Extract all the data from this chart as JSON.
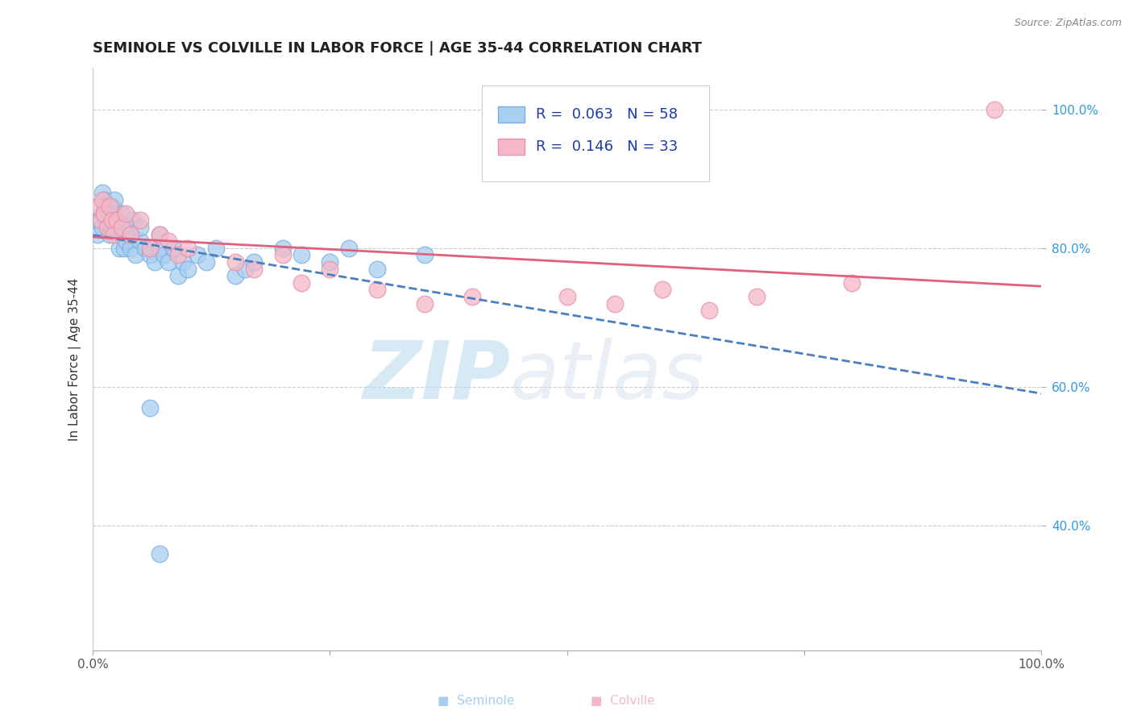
{
  "title": "SEMINOLE VS COLVILLE IN LABOR FORCE | AGE 35-44 CORRELATION CHART",
  "source_text": "Source: ZipAtlas.com",
  "ylabel": "In Labor Force | Age 35-44",
  "xlim": [
    0.0,
    1.0
  ],
  "ylim": [
    0.22,
    1.06
  ],
  "ytick_labels": [
    "40.0%",
    "60.0%",
    "80.0%",
    "100.0%"
  ],
  "ytick_values": [
    0.4,
    0.6,
    0.8,
    1.0
  ],
  "seminole_color": "#a8cef0",
  "colville_color": "#f5b8c8",
  "seminole_edge": "#7aaee0",
  "colville_edge": "#e890a8",
  "trend_seminole_color": "#4a7fc0",
  "trend_colville_color": "#e06080",
  "R_seminole": 0.063,
  "N_seminole": 58,
  "R_colville": 0.146,
  "N_colville": 33,
  "seminole_x": [
    0.005,
    0.007,
    0.01,
    0.01,
    0.01,
    0.012,
    0.013,
    0.015,
    0.015,
    0.017,
    0.018,
    0.018,
    0.02,
    0.02,
    0.02,
    0.022,
    0.023,
    0.025,
    0.025,
    0.027,
    0.028,
    0.03,
    0.03,
    0.032,
    0.033,
    0.035,
    0.037,
    0.04,
    0.04,
    0.042,
    0.045,
    0.05,
    0.05,
    0.055,
    0.06,
    0.065,
    0.07,
    0.07,
    0.075,
    0.08,
    0.085,
    0.09,
    0.095,
    0.1,
    0.11,
    0.12,
    0.13,
    0.15,
    0.16,
    0.17,
    0.2,
    0.22,
    0.25,
    0.27,
    0.3,
    0.35,
    0.06,
    0.07
  ],
  "seminole_y": [
    0.82,
    0.84,
    0.85,
    0.83,
    0.88,
    0.87,
    0.86,
    0.84,
    0.86,
    0.85,
    0.83,
    0.82,
    0.84,
    0.86,
    0.83,
    0.85,
    0.87,
    0.84,
    0.83,
    0.82,
    0.8,
    0.83,
    0.85,
    0.82,
    0.8,
    0.81,
    0.83,
    0.8,
    0.82,
    0.84,
    0.79,
    0.81,
    0.83,
    0.8,
    0.79,
    0.78,
    0.82,
    0.8,
    0.79,
    0.78,
    0.8,
    0.76,
    0.78,
    0.77,
    0.79,
    0.78,
    0.8,
    0.76,
    0.77,
    0.78,
    0.8,
    0.79,
    0.78,
    0.8,
    0.77,
    0.79,
    0.57,
    0.36
  ],
  "colville_x": [
    0.005,
    0.008,
    0.01,
    0.012,
    0.015,
    0.018,
    0.02,
    0.022,
    0.025,
    0.03,
    0.035,
    0.04,
    0.05,
    0.06,
    0.07,
    0.08,
    0.09,
    0.1,
    0.15,
    0.17,
    0.2,
    0.22,
    0.25,
    0.3,
    0.35,
    0.4,
    0.5,
    0.55,
    0.6,
    0.65,
    0.7,
    0.8,
    0.95
  ],
  "colville_y": [
    0.86,
    0.84,
    0.87,
    0.85,
    0.83,
    0.86,
    0.84,
    0.82,
    0.84,
    0.83,
    0.85,
    0.82,
    0.84,
    0.8,
    0.82,
    0.81,
    0.79,
    0.8,
    0.78,
    0.77,
    0.79,
    0.75,
    0.77,
    0.74,
    0.72,
    0.73,
    0.73,
    0.72,
    0.74,
    0.71,
    0.73,
    0.75,
    1.0
  ]
}
